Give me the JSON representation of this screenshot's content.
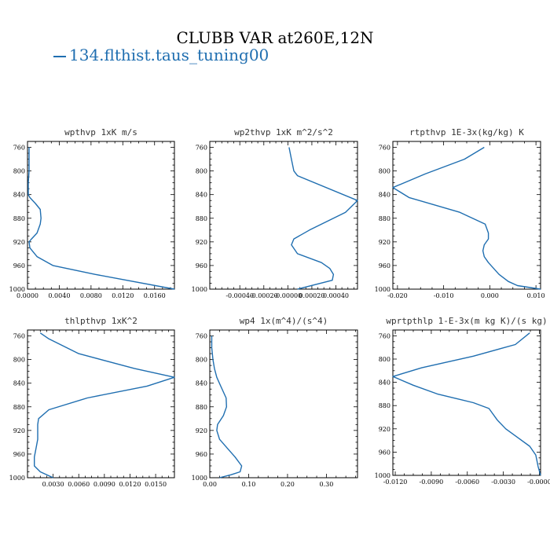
{
  "page": {
    "title": "CLUBB VAR at260E,12N",
    "legend_label": "134.flthist.taus_tuning00",
    "line_color": "#1f6eb0"
  },
  "chart_data": [
    {
      "type": "line",
      "title": "wpthvp  1xK m/s",
      "ylim": [
        1000,
        750
      ],
      "yticks": [
        760,
        800,
        840,
        880,
        920,
        960,
        1000
      ],
      "xlim": [
        0,
        0.0185
      ],
      "xticks": [
        0,
        0.004,
        0.008,
        0.012,
        0.016
      ],
      "xtick_labels": [
        "0.0000",
        "0.0040",
        "0.0080",
        "0.0120",
        "0.0160"
      ],
      "series": [
        {
          "x": [
            0.0002,
            0.0002,
            0.0002,
            0.0001,
            0.0001,
            0.0001,
            0.0003,
            0.001,
            0.0016,
            0.0017,
            0.0016,
            0.0012,
            0.0005,
            0.0002,
            0.0003,
            0.0012,
            0.0032,
            0.0085,
            0.0185
          ],
          "y": [
            760,
            780,
            800,
            820,
            830,
            840,
            845,
            855,
            865,
            880,
            890,
            905,
            915,
            920,
            930,
            945,
            960,
            975,
            1000
          ]
        }
      ]
    },
    {
      "type": "line",
      "title": "wp2thvp  1xK m^2/s^2",
      "ylim": [
        1000,
        750
      ],
      "yticks": [
        760,
        800,
        840,
        880,
        920,
        960,
        1000
      ],
      "xlim": [
        -0.00065,
        0.00058
      ],
      "xticks": [
        -0.0004,
        -0.0002,
        0,
        0.0002,
        0.0004
      ],
      "xtick_labels": [
        "-0.00040",
        "-0.00020",
        "-0.00000",
        "0.00020",
        "0.00040"
      ],
      "series": [
        {
          "x": [
            1e-05,
            3e-05,
            5e-05,
            8e-05,
            0.00058,
            0.00048,
            0.00018,
            5e-05,
            3e-05,
            8e-05,
            0.00028,
            0.00035,
            0.00038,
            0.00037,
            8e-05
          ],
          "y": [
            760,
            780,
            800,
            808,
            850,
            870,
            900,
            915,
            925,
            940,
            955,
            965,
            975,
            985,
            1000
          ]
        }
      ]
    },
    {
      "type": "line",
      "title": "rtpthvp  1E-3x(kg/kg) K",
      "ylim": [
        1000,
        750
      ],
      "yticks": [
        760,
        800,
        840,
        880,
        920,
        960,
        1000
      ],
      "xlim": [
        -0.021,
        0.011
      ],
      "xticks": [
        -0.02,
        -0.01,
        0,
        0.01
      ],
      "xtick_labels": [
        "-0.020",
        "-0.010",
        "0.000",
        "0.010"
      ],
      "series": [
        {
          "x": [
            -0.0012,
            -0.0055,
            -0.014,
            -0.021,
            -0.0175,
            -0.0065,
            -0.001,
            -0.0003,
            -0.0003,
            -0.0012,
            -0.0015,
            -0.0012,
            -0.0003,
            0.002,
            0.004,
            0.006,
            0.011
          ],
          "y": [
            760,
            780,
            805,
            828,
            845,
            870,
            890,
            905,
            915,
            925,
            935,
            945,
            955,
            975,
            987,
            994,
            1000
          ]
        }
      ]
    },
    {
      "type": "line",
      "title": "thlpthvp  1xK^2",
      "ylim": [
        1000,
        750
      ],
      "yticks": [
        760,
        800,
        840,
        880,
        920,
        960,
        1000
      ],
      "xlim": [
        0,
        0.0172
      ],
      "xticks": [
        0.003,
        0.006,
        0.009,
        0.012,
        0.015
      ],
      "xtick_labels": [
        "0.0030",
        "0.0060",
        "0.0090",
        "0.0120",
        "0.0150"
      ],
      "series": [
        {
          "x": [
            0.0015,
            0.0025,
            0.006,
            0.0125,
            0.0172,
            0.014,
            0.007,
            0.0025,
            0.0013,
            0.0012,
            0.0012,
            0.0012,
            0.001,
            0.0008,
            0.0008,
            0.0015,
            0.003
          ],
          "y": [
            755,
            765,
            790,
            815,
            830,
            845,
            865,
            885,
            900,
            910,
            920,
            935,
            950,
            965,
            980,
            990,
            1000
          ]
        }
      ]
    },
    {
      "type": "line",
      "title": "wp4  1x(m^4)/(s^4)",
      "ylim": [
        1000,
        750
      ],
      "yticks": [
        760,
        800,
        840,
        880,
        920,
        960,
        1000
      ],
      "xlim": [
        0,
        0.38
      ],
      "xticks": [
        0,
        0.1,
        0.2,
        0.3
      ],
      "xtick_labels": [
        "0.00",
        "0.10",
        "0.20",
        "0.30"
      ],
      "series": [
        {
          "x": [
            0.005,
            0.005,
            0.008,
            0.012,
            0.018,
            0.028,
            0.042,
            0.043,
            0.035,
            0.02,
            0.018,
            0.025,
            0.045,
            0.065,
            0.082,
            0.078,
            0.055,
            0.025
          ],
          "y": [
            760,
            780,
            800,
            815,
            830,
            845,
            865,
            880,
            895,
            910,
            920,
            935,
            950,
            965,
            980,
            990,
            995,
            1000
          ]
        }
      ]
    },
    {
      "type": "line",
      "title": "wprtpthlp  1-E-3x(m kg K)/(s kg)",
      "ylim": [
        1000,
        750
      ],
      "yticks": [
        760,
        800,
        840,
        880,
        920,
        960,
        1000
      ],
      "xlim": [
        -0.0122,
        0.0001
      ],
      "xticks": [
        -0.012,
        -0.009,
        -0.006,
        -0.003,
        0
      ],
      "xtick_labels": [
        "-0.0120",
        "-0.0090",
        "-0.0060",
        "-0.0030",
        "-0.0000"
      ],
      "series": [
        {
          "x": [
            -0.0008,
            -0.002,
            -0.0055,
            -0.0098,
            -0.0122,
            -0.0105,
            -0.0085,
            -0.0055,
            -0.0042,
            -0.0035,
            -0.0028,
            -0.0018,
            -0.0008,
            -0.0003,
            -0.0001,
            0.0001
          ],
          "y": [
            755,
            775,
            795,
            815,
            830,
            845,
            860,
            875,
            885,
            905,
            920,
            935,
            950,
            965,
            985,
            1000
          ]
        }
      ]
    }
  ]
}
